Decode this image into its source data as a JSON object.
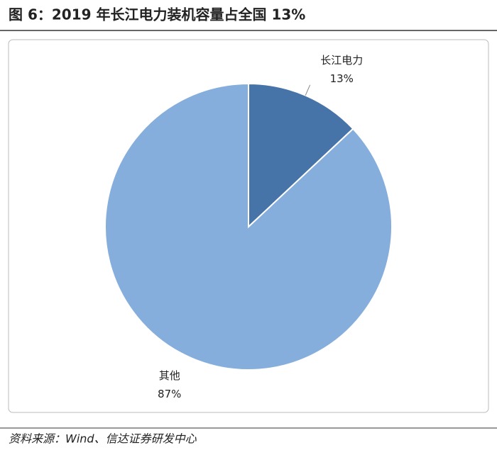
{
  "chart_data": {
    "type": "pie",
    "title": "图 6：2019 年长江电力装机容量占全国 13%",
    "categories": [
      "长江电力",
      "其他"
    ],
    "values": [
      13,
      87
    ],
    "value_labels": [
      "13%",
      "87%"
    ],
    "colors": [
      "#4674a8",
      "#86aedc"
    ]
  },
  "source": "资料来源：Wind、信达证券研发中心"
}
